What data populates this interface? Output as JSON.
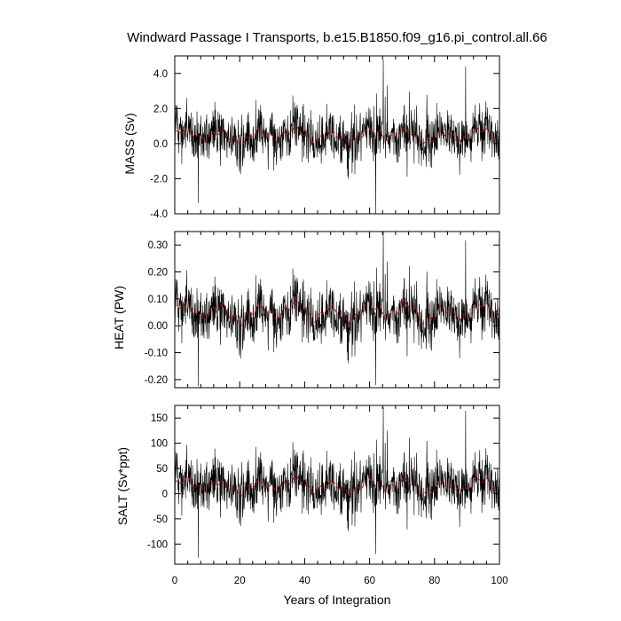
{
  "title": "Windward Passage I Transports, b.e15.B1850.f09_g16.pi_control.all.66",
  "xlabel": "Years of Integration",
  "colors": {
    "raw": "#000000",
    "smooth": "#cc0000",
    "frame": "#000000"
  },
  "chart_data": [
    {
      "type": "line",
      "ylabel": "MASS (Sv)",
      "xlim": [
        0,
        100
      ],
      "ylim": [
        -4.0,
        5.0
      ],
      "y_ticks": [
        "4.0",
        "2.0",
        "0.0",
        "-2.0",
        "-4.0"
      ],
      "x_ticks": [
        "0",
        "20",
        "40",
        "60",
        "80",
        "100"
      ],
      "grid": false,
      "series": [],
      "summary": {
        "raw_mean": 0.4,
        "raw_typical_range": [
          -1.6,
          2.4
        ],
        "raw_max": 4.8,
        "raw_min": -4.0,
        "smoothed_range": [
          -0.1,
          1.0
        ]
      },
      "annotations": []
    },
    {
      "type": "line",
      "ylabel": "HEAT (PW)",
      "xlim": [
        0,
        100
      ],
      "ylim": [
        -0.23,
        0.35
      ],
      "y_ticks": [
        "0.30",
        "0.20",
        "0.10",
        "0.00",
        "-0.10",
        "-0.20"
      ],
      "x_ticks": [
        "0",
        "20",
        "40",
        "60",
        "80",
        "100"
      ],
      "grid": false,
      "series": [],
      "summary": {
        "raw_mean": 0.04,
        "raw_typical_range": [
          -0.1,
          0.18
        ],
        "raw_max": 0.35,
        "raw_min": -0.22,
        "smoothed_range": [
          0.0,
          0.1
        ]
      },
      "annotations": []
    },
    {
      "type": "line",
      "ylabel": "SALT (Sv*ppt)",
      "xlim": [
        0,
        100
      ],
      "ylim": [
        -140,
        175
      ],
      "y_ticks": [
        "150",
        "100",
        "50",
        "0",
        "-50",
        "-100"
      ],
      "x_ticks": [
        "0",
        "20",
        "40",
        "60",
        "80",
        "100"
      ],
      "grid": false,
      "series": [],
      "summary": {
        "raw_mean": 15,
        "raw_typical_range": [
          -60,
          90
        ],
        "raw_max": 172,
        "raw_min": -120,
        "smoothed_range": [
          -5,
          35
        ]
      },
      "annotations": []
    }
  ]
}
